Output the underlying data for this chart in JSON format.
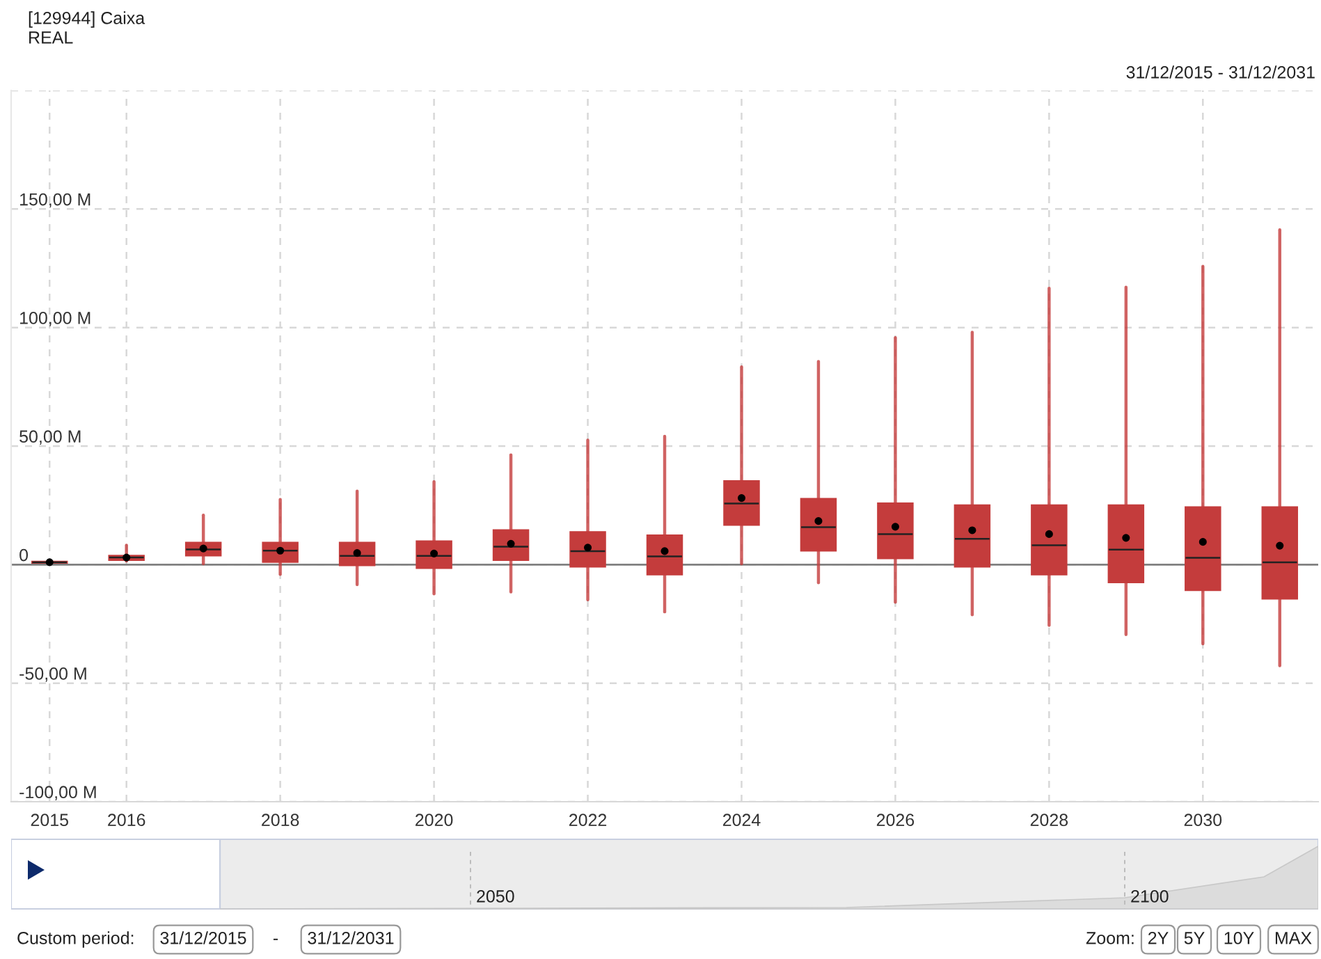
{
  "chart_data": {
    "type": "box",
    "title": "[129944] Caixa",
    "subtitle": "REAL",
    "annotations": [
      "31/12/2015 - 31/12/2031",
      "2050",
      "2100",
      "Custom period:",
      "31/12/2015",
      "-",
      "31/12/2031",
      "Zoom:",
      "2Y",
      "5Y",
      "10Y",
      "MAX"
    ],
    "x": [
      2015,
      2016,
      2017,
      2018,
      2019,
      2020,
      2021,
      2022,
      2023,
      2024,
      2025,
      2026,
      2027,
      2028,
      2029,
      2030,
      2031
    ],
    "color": "#c43c3c",
    "boxes": [
      {
        "low": 0.5,
        "q1": 0.8,
        "median": 1,
        "q3": 1.2,
        "high": 1.5,
        "mean": 1
      },
      {
        "low": 1.5,
        "q1": 2,
        "median": 3,
        "q3": 3.7,
        "high": 8.2,
        "mean": 3
      },
      {
        "low": 0.4,
        "q1": 3.9,
        "median": 6.4,
        "q3": 9.2,
        "high": 20.9,
        "mean": 6.8
      },
      {
        "low": -4.1,
        "q1": 1.2,
        "median": 5.9,
        "q3": 9.2,
        "high": 27.5,
        "mean": 5.9
      },
      {
        "low": -8.4,
        "q1": -0.2,
        "median": 3.7,
        "q3": 9.2,
        "high": 31,
        "mean": 4.9
      },
      {
        "low": -12.3,
        "q1": -1.4,
        "median": 3.7,
        "q3": 9.8,
        "high": 35,
        "mean": 4.7
      },
      {
        "low": -11.5,
        "q1": 2,
        "median": 7.6,
        "q3": 14.5,
        "high": 46.3,
        "mean": 8.8
      },
      {
        "low": -14.8,
        "q1": -0.8,
        "median": 5.7,
        "q3": 13.7,
        "high": 52.5,
        "mean": 7.2
      },
      {
        "low": -19.9,
        "q1": -4.1,
        "median": 3.5,
        "q3": 12.3,
        "high": 54.1,
        "mean": 5.7
      },
      {
        "low": 0.4,
        "q1": 16.8,
        "median": 25.8,
        "q3": 35.2,
        "high": 83.4,
        "mean": 28.1
      },
      {
        "low": -7.6,
        "q1": 5.9,
        "median": 15.8,
        "q3": 27.7,
        "high": 85.7,
        "mean": 18.4
      },
      {
        "low": -15.8,
        "q1": 2.7,
        "median": 12.9,
        "q3": 25.8,
        "high": 95.7,
        "mean": 16
      },
      {
        "low": -21.1,
        "q1": -0.8,
        "median": 10.9,
        "q3": 25,
        "high": 98,
        "mean": 14.5
      },
      {
        "low": -25.6,
        "q1": -4.1,
        "median": 8.2,
        "q3": 25,
        "high": 116.6,
        "mean": 12.9
      },
      {
        "low": -29.5,
        "q1": -7.4,
        "median": 6.3,
        "q3": 25,
        "high": 117,
        "mean": 11.3
      },
      {
        "low": -33.4,
        "q1": -10.7,
        "median": 2.9,
        "q3": 24.2,
        "high": 125.8,
        "mean": 9.6
      },
      {
        "low": -42.6,
        "q1": -14.3,
        "median": 1,
        "q3": 24.2,
        "high": 141.2,
        "mean": 8
      }
    ],
    "xlim": [
      2014.5,
      2031.5
    ],
    "xticks": [
      2015,
      2016,
      2018,
      2020,
      2022,
      2024,
      2026,
      2028,
      2030
    ],
    "ylim": [
      -100,
      200
    ],
    "yticks": [
      {
        "value": -100,
        "label": "-100,00 M"
      },
      {
        "value": -50,
        "label": "-50,00 M"
      },
      0,
      {
        "value": 50,
        "label": "50,00 M"
      },
      {
        "value": 100,
        "label": "100,00 M"
      },
      {
        "value": 150,
        "label": "150,00 M"
      },
      {
        "value": 200,
        "label": null
      }
    ],
    "ref_lines": [
      {
        "axis": "y",
        "value": 0,
        "color": "#808080"
      }
    ],
    "grid": true
  }
}
